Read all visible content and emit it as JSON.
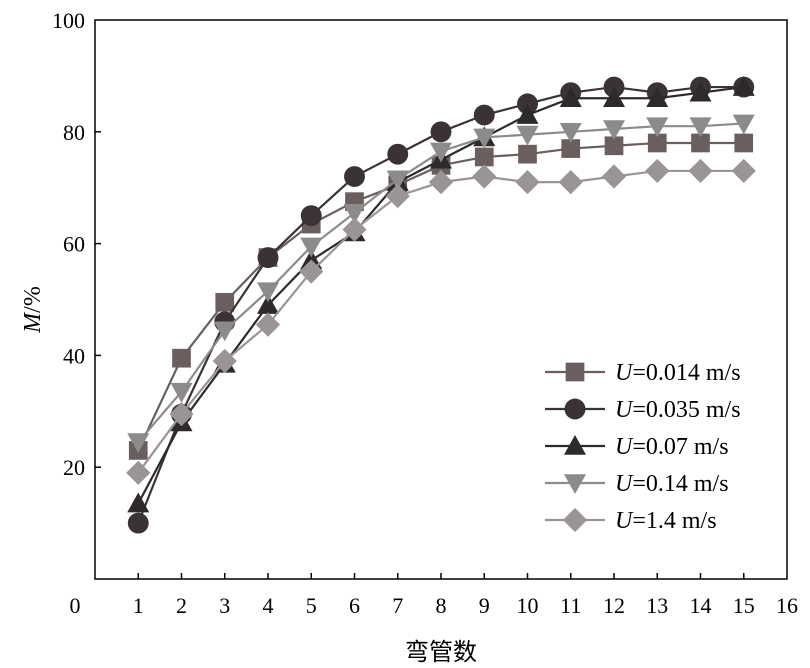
{
  "chart_data": {
    "type": "line",
    "title": "",
    "xlabel": "弯管数",
    "ylabel": "M/%",
    "ylabel_italic_part": "M",
    "ylabel_rest": "/%",
    "xlim": [
      0,
      16
    ],
    "ylim": [
      0,
      100
    ],
    "xticks": [
      0,
      1,
      2,
      3,
      4,
      5,
      6,
      7,
      8,
      9,
      10,
      11,
      12,
      13,
      14,
      15,
      16
    ],
    "yticks": [
      20,
      40,
      60,
      80,
      100
    ],
    "origin_label": "0",
    "grid": false,
    "legend_position": "bottom-right",
    "x": [
      1,
      2,
      3,
      4,
      5,
      6,
      7,
      8,
      9,
      10,
      11,
      12,
      13,
      14,
      15
    ],
    "series": [
      {
        "name": "U=0.014 m/s",
        "name_italic": "U",
        "name_rest": "=0.014 m/s",
        "marker": "square",
        "color": "#6a5e5e",
        "values": [
          23,
          39.5,
          49.5,
          57.5,
          63.5,
          67.5,
          70.5,
          74,
          75.5,
          76,
          77,
          77.5,
          78,
          78,
          78
        ]
      },
      {
        "name": "U=0.035 m/s",
        "name_italic": "U",
        "name_rest": "=0.035 m/s",
        "marker": "circle",
        "color": "#3b3333",
        "values": [
          10,
          29.5,
          46,
          57.5,
          65,
          72,
          76,
          80,
          83,
          85,
          87,
          88,
          87,
          88,
          88
        ]
      },
      {
        "name": "U=0.07 m/s",
        "name_italic": "U",
        "name_rest": "=0.07 m/s",
        "marker": "triangle-up",
        "color": "#2e2a2a",
        "values": [
          13.5,
          28,
          38.5,
          49,
          57,
          62,
          71,
          75,
          79,
          83,
          86,
          86,
          86,
          87,
          88
        ]
      },
      {
        "name": "U=0.14 m/s",
        "name_italic": "U",
        "name_rest": "=0.14 m/s",
        "marker": "triangle-down",
        "color": "#8d8a8a",
        "values": [
          24.5,
          33.5,
          44.5,
          51.5,
          59.5,
          65.5,
          71.5,
          76.5,
          79,
          79.5,
          80,
          80.5,
          81,
          81,
          81.5
        ]
      },
      {
        "name": "U=1.4 m/s",
        "name_italic": "U",
        "name_rest": "=1.4 m/s",
        "marker": "diamond",
        "color": "#9a9494",
        "values": [
          19,
          29.5,
          39,
          45.5,
          55,
          62.5,
          68.5,
          71,
          72,
          71,
          71,
          72,
          73,
          73,
          73
        ]
      }
    ]
  }
}
